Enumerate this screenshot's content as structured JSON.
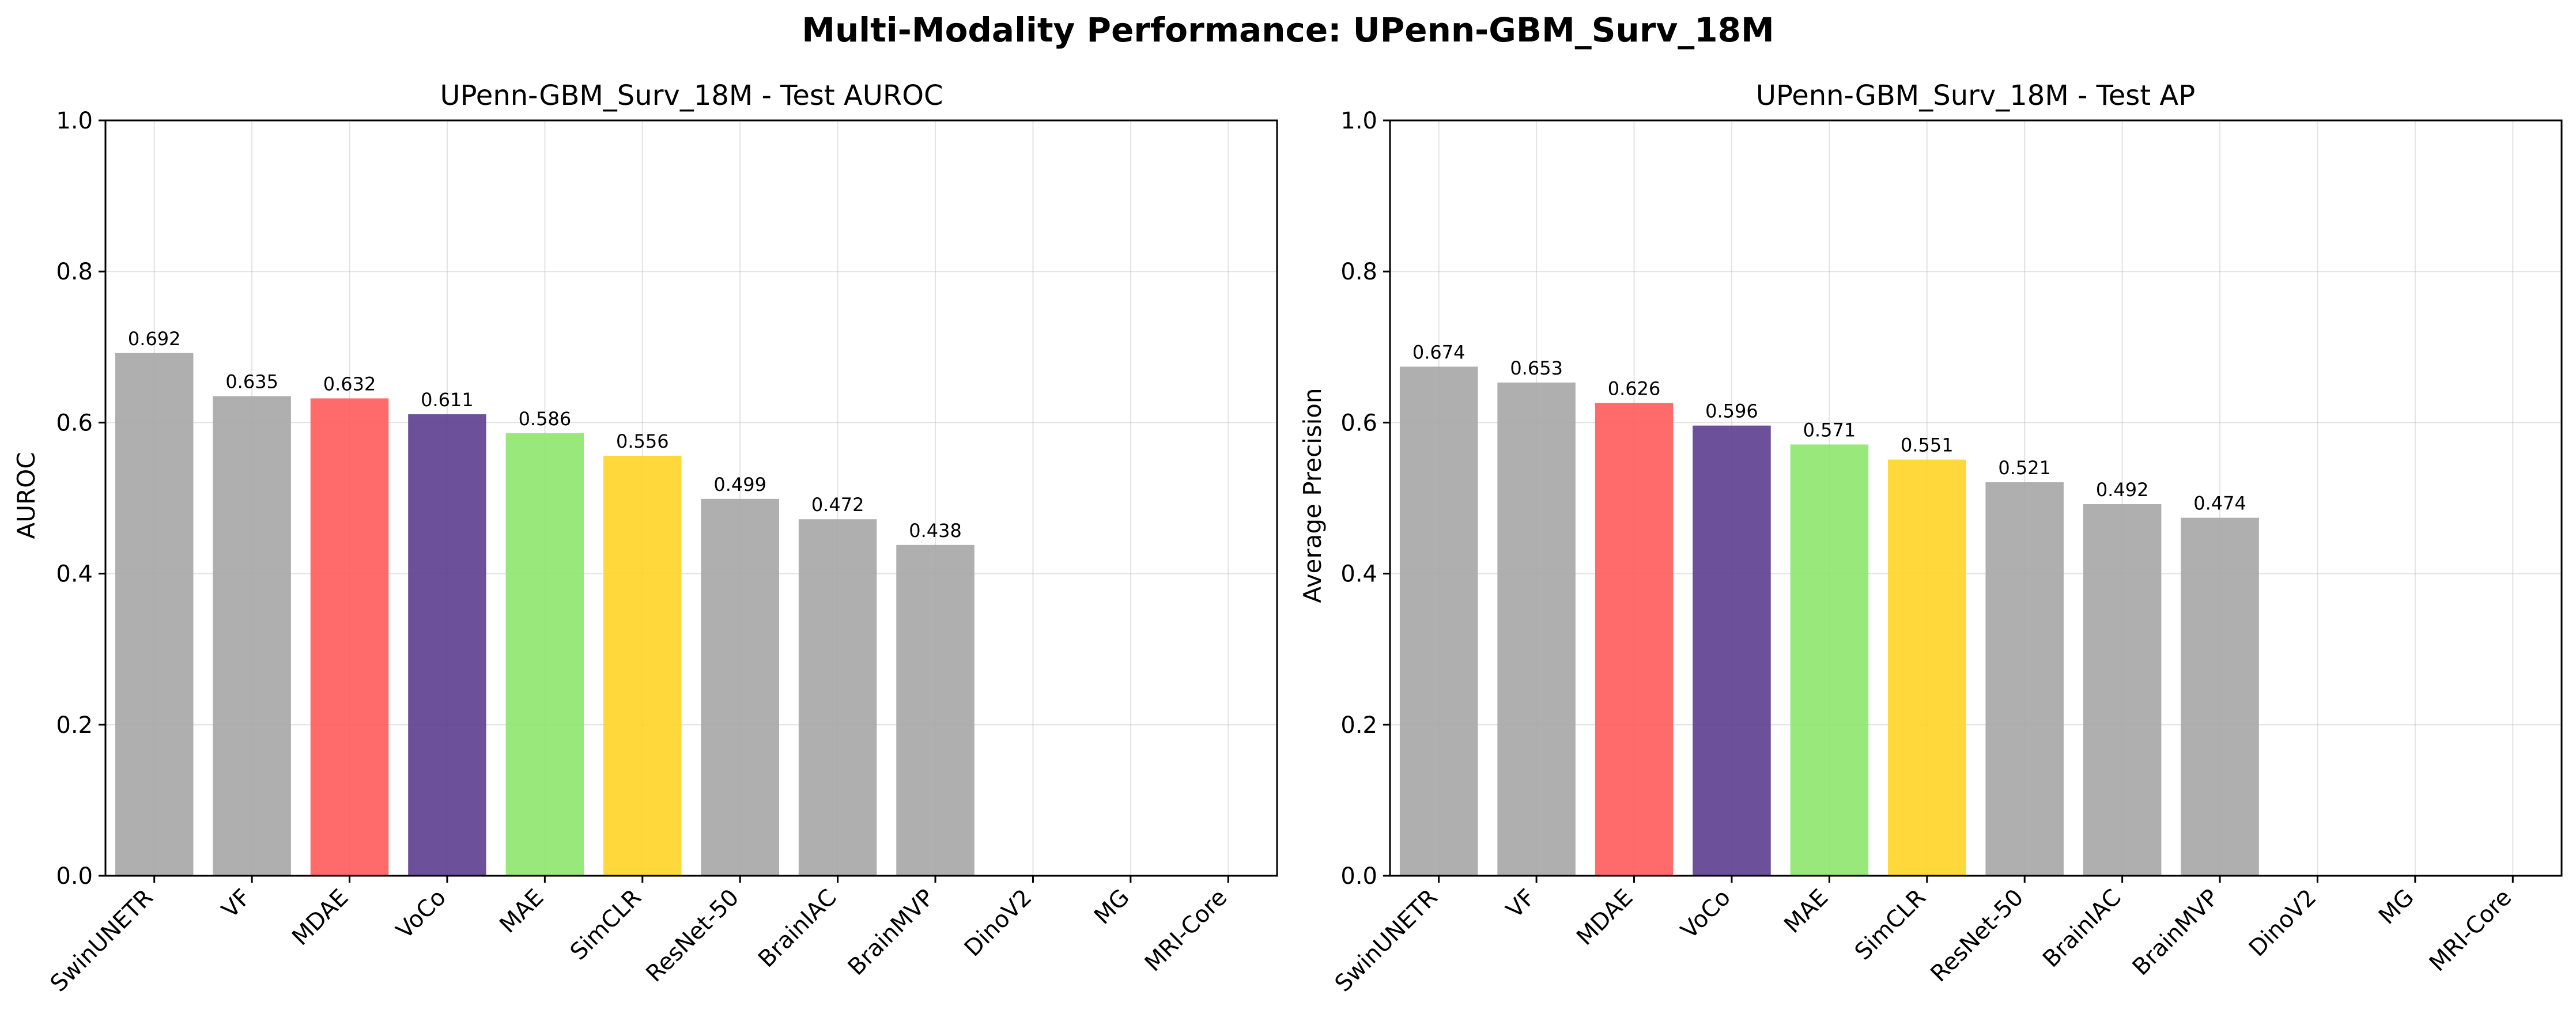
{
  "figure_title": "Multi-Modality Performance: UPenn-GBM_Surv_18M",
  "chart_data": [
    {
      "type": "bar",
      "title": "UPenn-GBM_Surv_18M - Test AUROC",
      "xlabel": "",
      "ylabel": "AUROC",
      "ylim": [
        0,
        1.0
      ],
      "yticks": [
        "0.0",
        "0.2",
        "0.4",
        "0.6",
        "0.8",
        "1.0"
      ],
      "grid": true,
      "categories": [
        "SwinUNETR",
        "VF",
        "MDAE",
        "VoCo",
        "MAE",
        "SimCLR",
        "ResNet-50",
        "BrainIAC",
        "BrainMVP",
        "DinoV2",
        "MG",
        "MRI-Core"
      ],
      "values": [
        0.692,
        0.635,
        0.632,
        0.611,
        0.586,
        0.556,
        0.499,
        0.472,
        0.438,
        null,
        null,
        null
      ],
      "value_labels": [
        "0.692",
        "0.635",
        "0.632",
        "0.611",
        "0.586",
        "0.556",
        "0.499",
        "0.472",
        "0.438",
        "",
        "",
        ""
      ],
      "colors": [
        "#a6a6a6",
        "#a6a6a6",
        "#ff5a5a",
        "#5c3d8f",
        "#8ee56e",
        "#ffd426",
        "#a6a6a6",
        "#a6a6a6",
        "#a6a6a6",
        "#a6a6a6",
        "#a6a6a6",
        "#a6a6a6"
      ]
    },
    {
      "type": "bar",
      "title": "UPenn-GBM_Surv_18M - Test AP",
      "xlabel": "",
      "ylabel": "Average Precision",
      "ylim": [
        0,
        1.0
      ],
      "yticks": [
        "0.0",
        "0.2",
        "0.4",
        "0.6",
        "0.8",
        "1.0"
      ],
      "grid": true,
      "categories": [
        "SwinUNETR",
        "VF",
        "MDAE",
        "VoCo",
        "MAE",
        "SimCLR",
        "ResNet-50",
        "BrainIAC",
        "BrainMVP",
        "DinoV2",
        "MG",
        "MRI-Core"
      ],
      "values": [
        0.674,
        0.653,
        0.626,
        0.596,
        0.571,
        0.551,
        0.521,
        0.492,
        0.474,
        null,
        null,
        null
      ],
      "value_labels": [
        "0.674",
        "0.653",
        "0.626",
        "0.596",
        "0.571",
        "0.551",
        "0.521",
        "0.492",
        "0.474",
        "",
        "",
        ""
      ],
      "colors": [
        "#a6a6a6",
        "#a6a6a6",
        "#ff5a5a",
        "#5c3d8f",
        "#8ee56e",
        "#ffd426",
        "#a6a6a6",
        "#a6a6a6",
        "#a6a6a6",
        "#a6a6a6",
        "#a6a6a6",
        "#a6a6a6"
      ]
    }
  ]
}
